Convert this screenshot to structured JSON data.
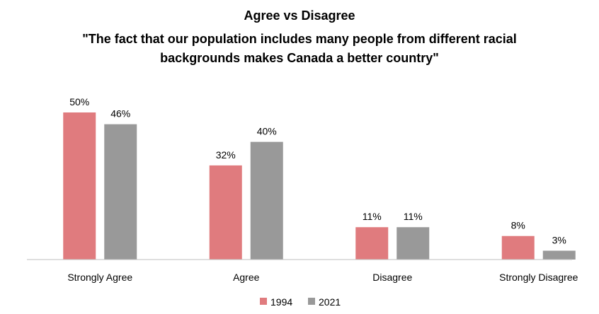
{
  "chart_data": {
    "type": "bar",
    "title": "Agree vs Disagree",
    "subtitle_lines": [
      "\"The fact that our population includes many people from different racial",
      "backgrounds makes Canada a better country\""
    ],
    "categories": [
      "Strongly Agree",
      "Agree",
      "Disagree",
      "Strongly Disagree"
    ],
    "series": [
      {
        "name": "1994",
        "color": "#e07b7e",
        "values": [
          50,
          32,
          11,
          8
        ],
        "labels": [
          "50%",
          "32%",
          "11%",
          "8%"
        ]
      },
      {
        "name": "2021",
        "color": "#999999",
        "values": [
          46,
          40,
          11,
          3
        ],
        "labels": [
          "46%",
          "40%",
          "11%",
          "3%"
        ]
      }
    ],
    "unit": "%",
    "ylim": [
      0,
      50
    ],
    "grid": false,
    "legend": "bottom-center",
    "data_labels": true,
    "xlabel": "",
    "ylabel": ""
  }
}
